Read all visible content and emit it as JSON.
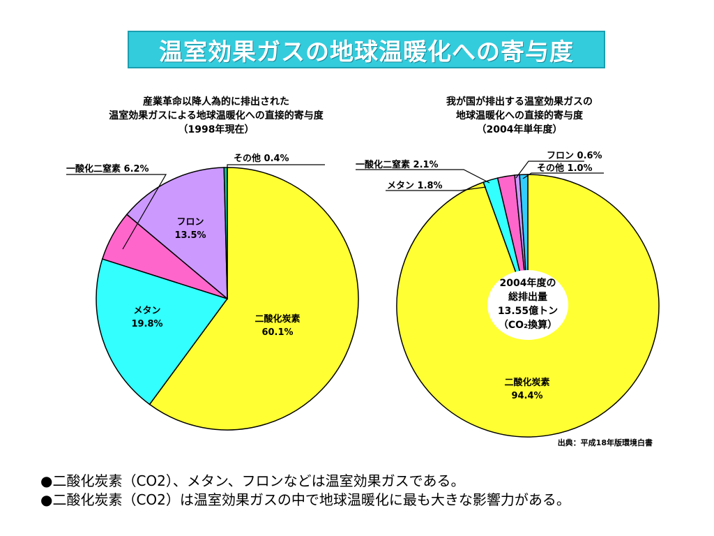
{
  "header": {
    "title": "温室効果ガスの地球温暖化への寄与度"
  },
  "chart_data": [
    {
      "type": "pie",
      "title_lines": [
        "産業革命以降人為的に排出された",
        "温室効果ガスによる地球温暖化への直接的寄与度",
        "（1998年現在）"
      ],
      "slices": [
        {
          "name": "二酸化炭素",
          "value": 60.1,
          "label": "60.1%",
          "color": "#ffff33"
        },
        {
          "name": "メタン",
          "value": 19.8,
          "label": "19.8%",
          "color": "#33ffff"
        },
        {
          "name": "一酸化二窒素",
          "value": 6.2,
          "label": "一酸化二窒素 6.2%",
          "color": "#ff66cc"
        },
        {
          "name": "フロン",
          "value": 13.5,
          "label": "13.5%",
          "color": "#cc99ff"
        },
        {
          "name": "その他",
          "value": 0.4,
          "label": "その他 0.4%",
          "color": "#00cc99"
        }
      ]
    },
    {
      "type": "pie",
      "title_lines": [
        "我が国が排出する温室効果ガスの",
        "地球温暖化への直接的寄与度",
        "（2004年単年度）"
      ],
      "center_lines": [
        "2004年度の",
        "総排出量",
        "13.55億トン",
        "（CO₂換算）"
      ],
      "slices": [
        {
          "name": "二酸化炭素",
          "value": 94.4,
          "label": "94.4%",
          "color": "#ffff33"
        },
        {
          "name": "メタン",
          "value": 1.8,
          "label": "メタン 1.8%",
          "color": "#33ffff"
        },
        {
          "name": "一酸化二窒素",
          "value": 2.1,
          "label": "一酸化二窒素 2.1%",
          "color": "#ff66cc"
        },
        {
          "name": "フロン",
          "value": 0.6,
          "label": "フロン 0.6%",
          "color": "#cc99ff"
        },
        {
          "name": "その他",
          "value": 1.0,
          "label": "その他 1.0%",
          "color": "#33ccff"
        }
      ]
    }
  ],
  "source": "出典：平成18年版環境白書",
  "bullets": [
    "●二酸化炭素（CO2）、メタン、フロンなどは温室効果ガスである。",
    "●二酸化炭素（CO2）は温室効果ガスの中で地球温暖化に最も大きな影響力がある。"
  ]
}
